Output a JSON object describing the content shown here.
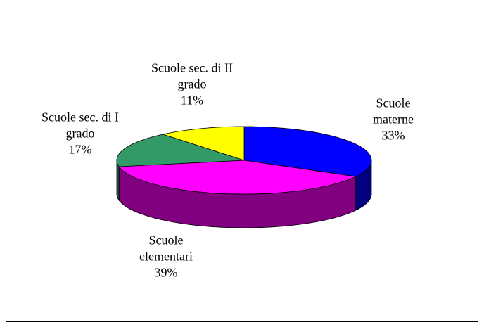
{
  "chart_data": {
    "type": "pie3d",
    "categories": [
      "Scuole materne",
      "Scuole elementari",
      "Scuole sec. di I grado",
      "Scuole sec. di II grado"
    ],
    "values": [
      33,
      39,
      17,
      11
    ],
    "value_labels": [
      "33%",
      "39%",
      "17%",
      "11%"
    ],
    "colors": [
      "#0000ff",
      "#ff00ff",
      "#339966",
      "#ffff00"
    ]
  }
}
